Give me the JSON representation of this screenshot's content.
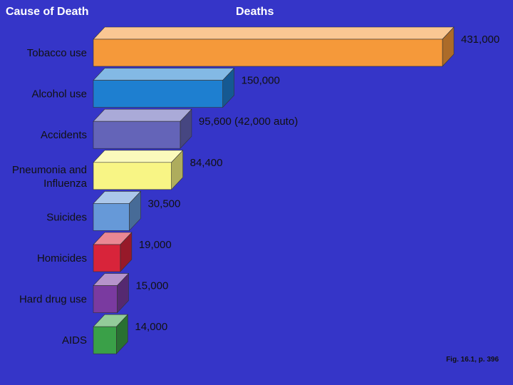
{
  "header": {
    "cause_label": "Cause of Death",
    "deaths_label": "Deaths"
  },
  "caption": "Fig. 16.1, p. 396",
  "chart_data": {
    "type": "bar",
    "orientation": "horizontal",
    "style": "3d",
    "title": "",
    "xlabel": "Deaths",
    "ylabel": "Cause of Death",
    "categories": [
      "Tobacco use",
      "Alcohol use",
      "Accidents",
      "Pneumonia and Influenza",
      "Suicides",
      "Homicides",
      "Hard drug use",
      "AIDS"
    ],
    "values": [
      431000,
      150000,
      95600,
      84400,
      30500,
      19000,
      15000,
      14000
    ],
    "value_labels": [
      "431,000",
      "150,000",
      "95,600 (42,000 auto)",
      "84,400",
      "30,500",
      "19,000",
      "15,000",
      "14,000"
    ],
    "colors": [
      "#f5993a",
      "#1e7fd0",
      "#6464b8",
      "#f8f585",
      "#6699d8",
      "#d8243a",
      "#7a3aa0",
      "#3aa048"
    ],
    "xlim": [
      0,
      431000
    ]
  }
}
